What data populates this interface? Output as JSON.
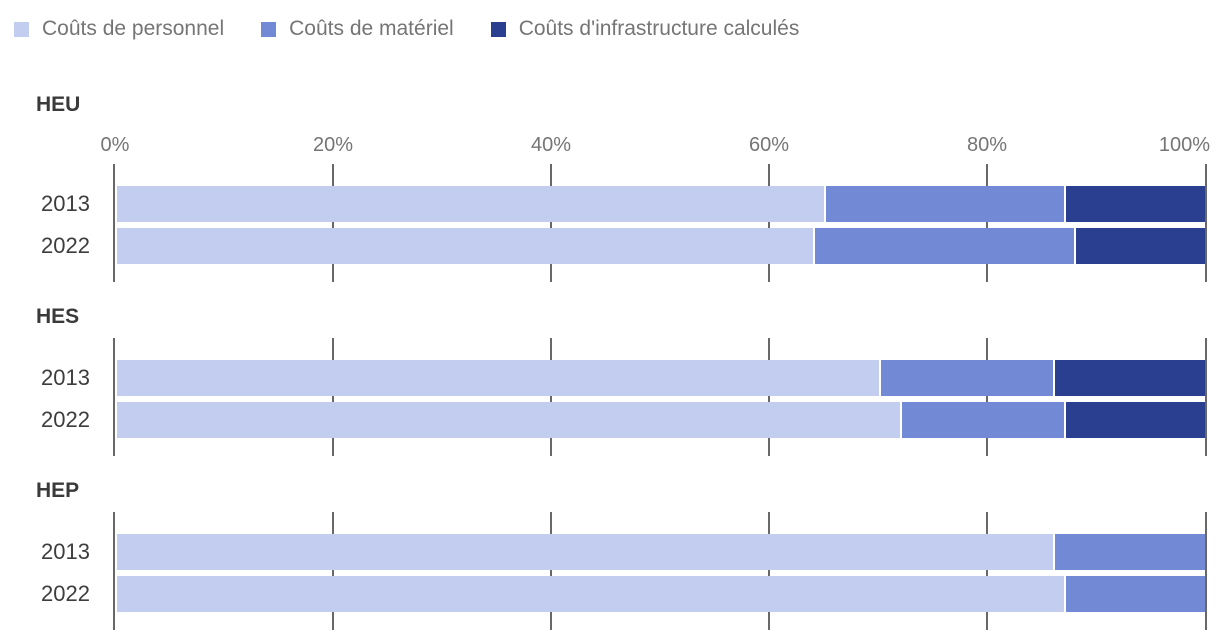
{
  "colors": {
    "background": "#ffffff",
    "gridline": "#686868",
    "axis_label_text": "#757575",
    "legend_text": "#757575",
    "group_title_text": "#3a3a3a",
    "row_label_text": "#3d3d3d"
  },
  "chart_data": {
    "type": "bar",
    "stacked": true,
    "orientation": "horizontal",
    "unit": "%",
    "legend_position": "top",
    "grid": true,
    "axis": {
      "min": 0,
      "max": 100,
      "tick_values": [
        0,
        20,
        40,
        60,
        80,
        100
      ],
      "tick_labels": [
        "0%",
        "20%",
        "40%",
        "60%",
        "80%",
        "100%"
      ]
    },
    "series": [
      {
        "name": "Coûts de personnel",
        "color": "#c3cdef"
      },
      {
        "name": "Coûts de matériel",
        "color": "#7289d5"
      },
      {
        "name": "Coûts d'infrastructure calculés",
        "color": "#2b3f90"
      }
    ],
    "groups": [
      {
        "title": "HEU",
        "show_axis_labels": true,
        "rows": [
          {
            "label": "2013",
            "values": [
              65,
              22,
              13
            ]
          },
          {
            "label": "2022",
            "values": [
              64,
              24,
              12
            ]
          }
        ]
      },
      {
        "title": "HES",
        "show_axis_labels": false,
        "rows": [
          {
            "label": "2013",
            "values": [
              70,
              16,
              14
            ]
          },
          {
            "label": "2022",
            "values": [
              72,
              15,
              13
            ]
          }
        ]
      },
      {
        "title": "HEP",
        "show_axis_labels": false,
        "rows": [
          {
            "label": "2013",
            "values": [
              86,
              14,
              0
            ]
          },
          {
            "label": "2022",
            "values": [
              87,
              13,
              0
            ]
          }
        ]
      }
    ]
  }
}
